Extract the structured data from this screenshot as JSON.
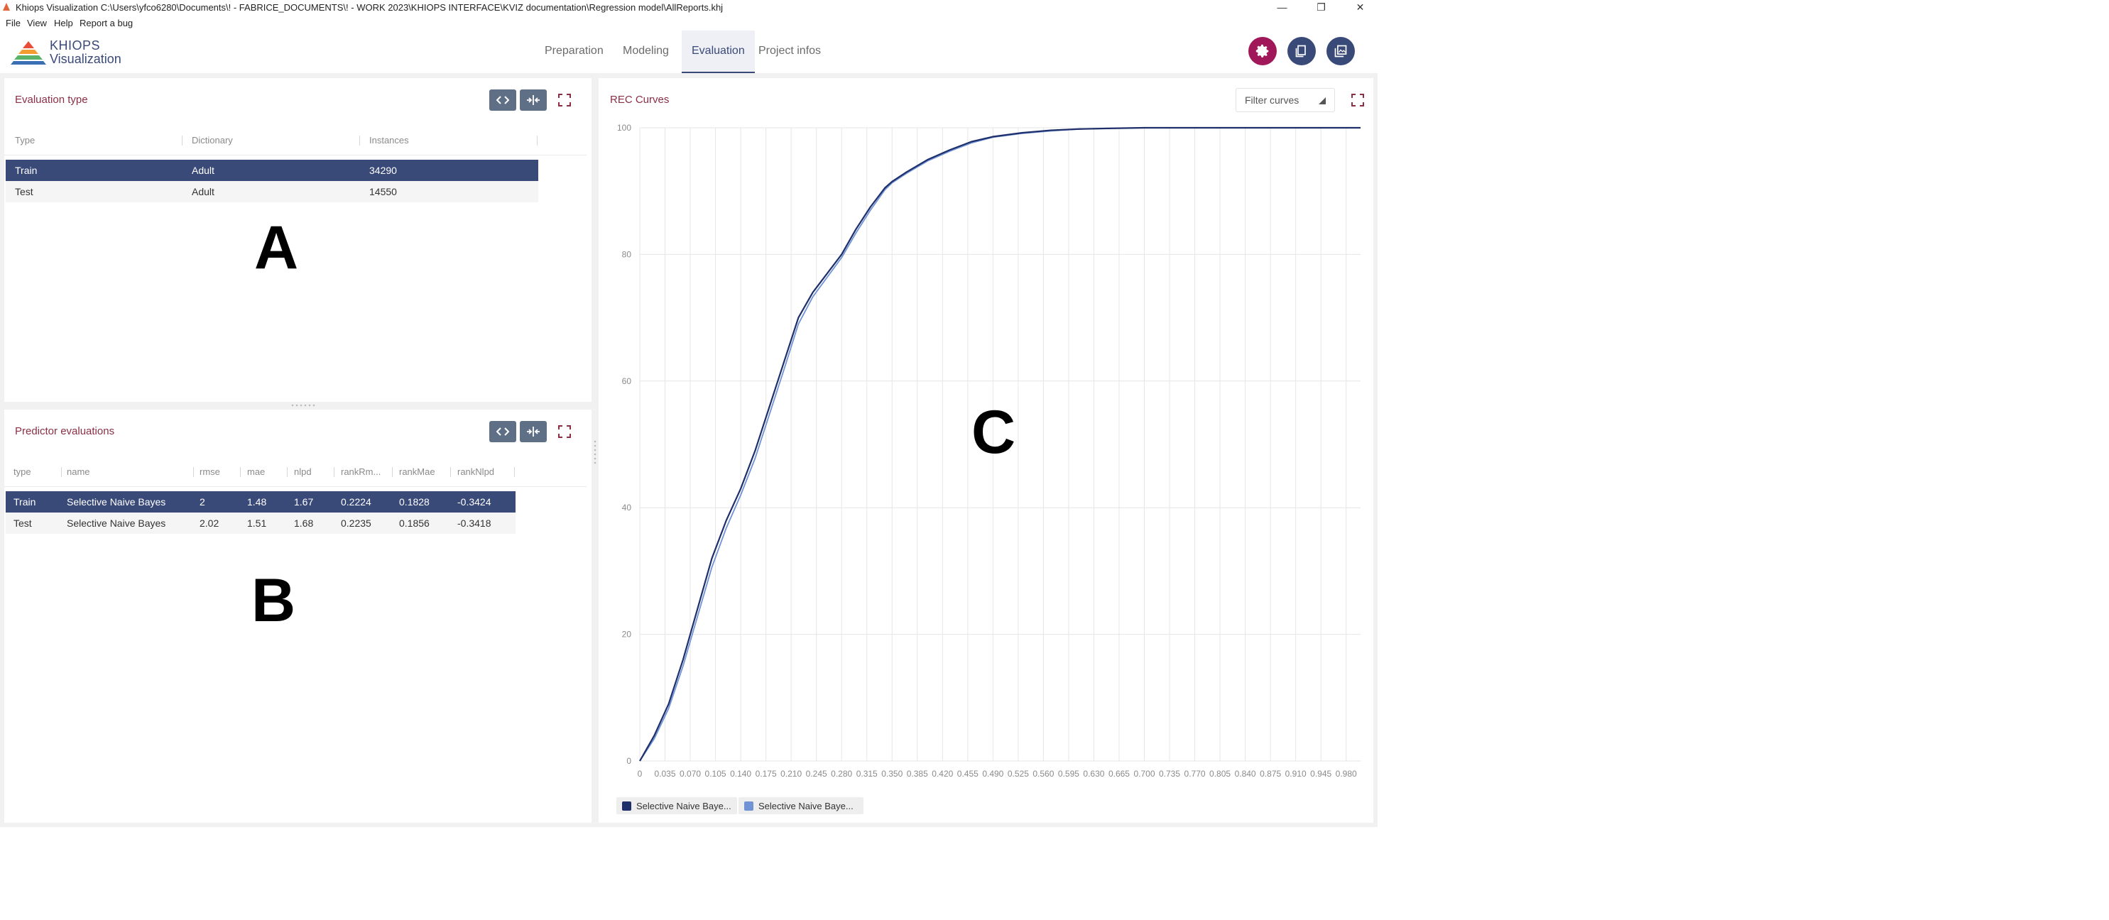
{
  "window": {
    "title": "Khiops Visualization C:\\Users\\yfco6280\\Documents\\! - FABRICE_DOCUMENTS\\! - WORK 2023\\KHIOPS INTERFACE\\KVIZ documentation\\Regression model\\AllReports.khj",
    "controls": {
      "minimize": "—",
      "maximize": "❐",
      "close": "✕"
    }
  },
  "menu": [
    "File",
    "View",
    "Help",
    "Report a bug"
  ],
  "logo": {
    "line1": "KHIOPS",
    "line2": "Visualization"
  },
  "tabs": [
    {
      "label": "Preparation",
      "active": false
    },
    {
      "label": "Modeling",
      "active": false
    },
    {
      "label": "Evaluation",
      "active": true
    },
    {
      "label": "Project infos",
      "active": false
    }
  ],
  "header_icons": [
    {
      "name": "settings-icon",
      "color": "#a0185a"
    },
    {
      "name": "open-file-icon",
      "color": "#3a4a78"
    },
    {
      "name": "copy-images-icon",
      "color": "#3a4a78"
    }
  ],
  "evaluation_type": {
    "title": "Evaluation type",
    "columns": [
      "Type",
      "Dictionary",
      "Instances"
    ],
    "rows": [
      {
        "cells": [
          "Train",
          "Adult",
          "34290"
        ],
        "selected": true
      },
      {
        "cells": [
          "Test",
          "Adult",
          "14550"
        ],
        "selected": false
      }
    ],
    "overlay_label": "A"
  },
  "predictor_evaluations": {
    "title": "Predictor evaluations",
    "columns": [
      "type",
      "name",
      "rmse",
      "mae",
      "nlpd",
      "rankRm...",
      "rankMae",
      "rankNlpd"
    ],
    "rows": [
      {
        "cells": [
          "Train",
          "Selective Naive Bayes",
          "2",
          "1.48",
          "1.67",
          "0.2224",
          "0.1828",
          "-0.3424"
        ],
        "selected": true
      },
      {
        "cells": [
          "Test",
          "Selective Naive Bayes",
          "2.02",
          "1.51",
          "1.68",
          "0.2235",
          "0.1856",
          "-0.3418"
        ],
        "selected": false
      }
    ],
    "overlay_label": "B"
  },
  "rec_curves": {
    "title": "REC Curves",
    "filter_label": "Filter curves",
    "overlay_label": "C",
    "colors": {
      "train": "#1f2f6b",
      "test": "#6f93d4",
      "grid": "#e6e6e6",
      "axis_text": "#8a8a8a"
    }
  },
  "chart_data": {
    "type": "line",
    "title": "",
    "xlabel": "",
    "ylabel": "",
    "xlim": [
      0,
      1
    ],
    "ylim": [
      0,
      100
    ],
    "x_ticks": [
      "0",
      "0.035",
      "0.070",
      "0.105",
      "0.140",
      "0.175",
      "0.210",
      "0.245",
      "0.280",
      "0.315",
      "0.350",
      "0.385",
      "0.420",
      "0.455",
      "0.490",
      "0.525",
      "0.560",
      "0.595",
      "0.630",
      "0.665",
      "0.700",
      "0.735",
      "0.770",
      "0.805",
      "0.840",
      "0.875",
      "0.910",
      "0.945",
      "0.980"
    ],
    "y_ticks": [
      "0",
      "20",
      "40",
      "60",
      "80",
      "100"
    ],
    "grid": true,
    "legend_position": "bottom-left",
    "series": [
      {
        "name": "Selective Naive Baye...",
        "color": "#1f2f6b",
        "x": [
          0,
          0.02,
          0.04,
          0.06,
          0.08,
          0.1,
          0.12,
          0.14,
          0.16,
          0.18,
          0.2,
          0.22,
          0.24,
          0.26,
          0.28,
          0.3,
          0.32,
          0.34,
          0.35,
          0.37,
          0.4,
          0.43,
          0.46,
          0.49,
          0.53,
          0.57,
          0.61,
          0.65,
          0.7,
          0.8,
          0.9,
          1.0
        ],
        "y": [
          0,
          4,
          9,
          16,
          24,
          32,
          38,
          43,
          49,
          56,
          63,
          70,
          74,
          77,
          80,
          84,
          87.5,
          90.5,
          91.5,
          93,
          95,
          96.5,
          97.8,
          98.6,
          99.2,
          99.6,
          99.8,
          99.9,
          100,
          100,
          100,
          100
        ]
      },
      {
        "name": "Selective Naive Baye...",
        "color": "#6f93d4",
        "x": [
          0,
          0.02,
          0.04,
          0.06,
          0.08,
          0.1,
          0.12,
          0.14,
          0.16,
          0.18,
          0.2,
          0.22,
          0.24,
          0.26,
          0.28,
          0.3,
          0.32,
          0.34,
          0.35,
          0.37,
          0.4,
          0.43,
          0.46,
          0.49,
          0.53,
          0.57,
          0.61,
          0.65,
          0.7,
          0.8,
          0.9,
          1.0
        ],
        "y": [
          0,
          3.5,
          8.3,
          15,
          22.8,
          30.6,
          36.8,
          42,
          47.8,
          54.8,
          61.8,
          69,
          73.3,
          76.4,
          79.5,
          83.4,
          87,
          90.2,
          91.3,
          92.8,
          94.8,
          96.3,
          97.6,
          98.5,
          99.1,
          99.5,
          99.8,
          99.9,
          100,
          100,
          100,
          100
        ]
      }
    ]
  }
}
